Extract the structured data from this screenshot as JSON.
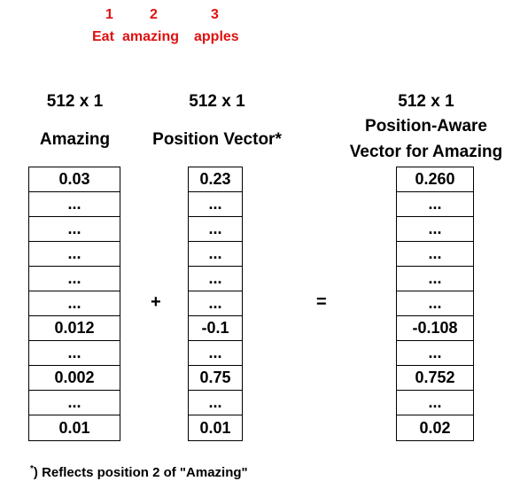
{
  "sentence": {
    "positions": [
      "1",
      "2",
      "3"
    ],
    "words": [
      "Eat",
      "amazing",
      "apples"
    ]
  },
  "columns": [
    {
      "dim": "512 x 1",
      "title": [
        "Amazing"
      ],
      "cells": [
        "0.03",
        "...",
        "...",
        "...",
        "...",
        "...",
        "0.012",
        "...",
        "0.002",
        "...",
        "0.01"
      ]
    },
    {
      "dim": "512 x 1",
      "title": [
        "Position Vector*"
      ],
      "cells": [
        "0.23",
        "...",
        "...",
        "...",
        "...",
        "...",
        "-0.1",
        "...",
        "0.75",
        "...",
        "0.01"
      ]
    },
    {
      "dim": "512 x 1",
      "title": [
        "Position-Aware",
        "Vector for Amazing"
      ],
      "cells": [
        "0.260",
        "...",
        "...",
        "...",
        "...",
        "...",
        "-0.108",
        "...",
        "0.752",
        "...",
        "0.02"
      ]
    }
  ],
  "operators": {
    "plus": "+",
    "equals": "="
  },
  "footnote": {
    "marker": "*",
    "text": ") Reflects position 2 of \"Amazing\""
  }
}
